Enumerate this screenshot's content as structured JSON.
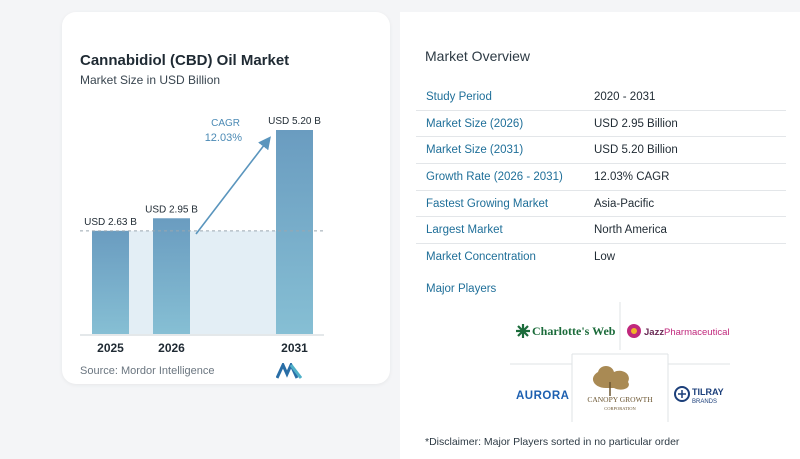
{
  "chart_data": {
    "type": "bar",
    "title": "Cannabidiol (CBD) Oil Market",
    "subtitle": "Market Size in USD Billion",
    "categories": [
      "2025",
      "2026",
      "2031"
    ],
    "values": [
      2.63,
      2.95,
      5.2
    ],
    "data_labels": [
      "USD 2.63 B",
      "USD 2.95 B",
      "USD 5.20 B"
    ],
    "cagr_label": "CAGR",
    "cagr_value": "12.03%",
    "ylim": [
      0,
      5.2
    ],
    "reference_line_at": 2.63,
    "grid": false,
    "colors": {
      "bar_top": "#6a9cc0",
      "bar_bottom": "#86bfd4",
      "shaded_area": "#e3eef5",
      "arrow": "#5a95bd",
      "cagr_text": "#4b8ab5"
    }
  },
  "source": "Source:  Mordor Intelligence",
  "overview": {
    "title": "Market Overview",
    "rows": [
      {
        "label": "Study Period",
        "value": "2020 - 2031"
      },
      {
        "label": "Market Size (2026)",
        "value": "USD 2.95 Billion"
      },
      {
        "label": "Market Size (2031)",
        "value": "USD 5.20 Billion"
      },
      {
        "label": "Growth Rate (2026 - 2031)",
        "value": "12.03% CAGR"
      },
      {
        "label": "Fastest Growing Market",
        "value": "Asia-Pacific"
      },
      {
        "label": "Largest Market",
        "value": "North America"
      },
      {
        "label": "Market Concentration",
        "value": "Low"
      }
    ]
  },
  "players": {
    "title": "Major Players",
    "logos": {
      "charlottes_web": "Charlotte's Web",
      "jazz_brand": "Jazz",
      "jazz_rest": "Pharmaceuticals",
      "aurora": "AURORA",
      "canopy_line1": "CANOPY GROWTH",
      "canopy_line2": "CORPORATION",
      "tilray_line1": "TILRAY",
      "tilray_line2": "BRANDS"
    }
  },
  "disclaimer": "*Disclaimer: Major Players sorted in no particular order"
}
